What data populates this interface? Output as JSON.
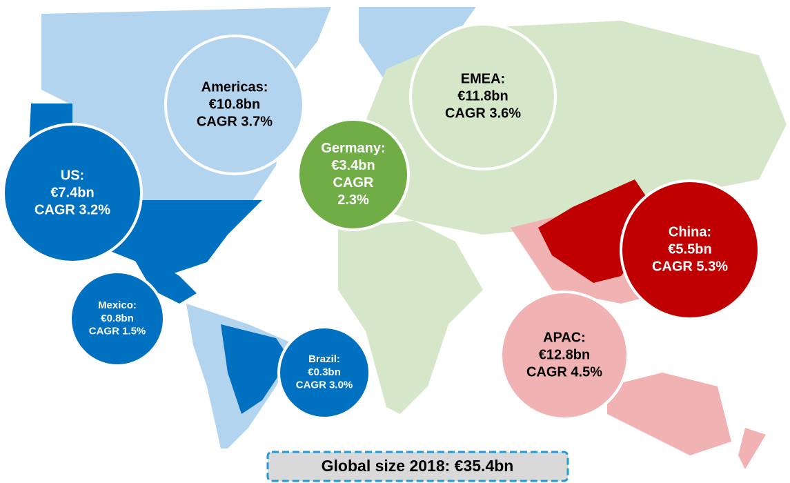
{
  "regions": [
    {
      "lines": [
        "Americas:",
        "€10.8bn",
        "CAGR 3.7%"
      ]
    },
    {
      "lines": [
        "US:",
        "€7.4bn",
        "CAGR 3.2%"
      ]
    },
    {
      "lines": [
        "Germany:",
        "€3.4bn",
        "CAGR",
        "2.3%"
      ]
    },
    {
      "lines": [
        "EMEA:",
        "€11.8bn",
        "CAGR 3.6%"
      ]
    },
    {
      "lines": [
        "China:",
        "€5.5bn",
        "CAGR 5.3%"
      ]
    },
    {
      "lines": [
        "APAC:",
        "€12.8bn",
        "CAGR 4.5%"
      ]
    },
    {
      "lines": [
        "Mexico:",
        "€0.8bn",
        "CAGR 1.5%"
      ]
    },
    {
      "lines": [
        "Brazil:",
        "€0.3bn",
        "CAGR 3.0%"
      ]
    }
  ],
  "footer": "Global size 2018: €35.4bn"
}
